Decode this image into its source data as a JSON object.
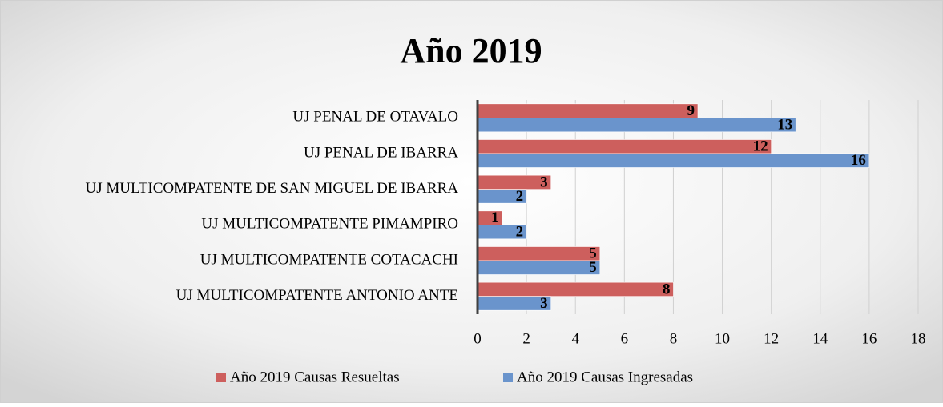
{
  "chart_data": {
    "type": "bar",
    "orientation": "horizontal",
    "title": "Año 2019",
    "categories": [
      "UJ PENAL DE OTAVALO",
      "UJ PENAL DE IBARRA",
      "UJ MULTICOMPATENTE DE SAN MIGUEL DE IBARRA",
      "UJ MULTICOMPATENTE PIMAMPIRO",
      "UJ MULTICOMPATENTE COTACACHI",
      "UJ MULTICOMPATENTE ANTONIO ANTE"
    ],
    "series": [
      {
        "name": "Año 2019 Causas Resueltas",
        "color": "#cd5f5d",
        "values": [
          9,
          12,
          3,
          1,
          5,
          8
        ]
      },
      {
        "name": "Año 2019 Causas Ingresadas",
        "color": "#6a94cc",
        "values": [
          13,
          16,
          2,
          2,
          5,
          3
        ]
      }
    ],
    "xlim": [
      0,
      18
    ],
    "xticks": [
      0,
      2,
      4,
      6,
      8,
      10,
      12,
      14,
      16,
      18
    ],
    "grid": true,
    "legend": "bottom"
  }
}
